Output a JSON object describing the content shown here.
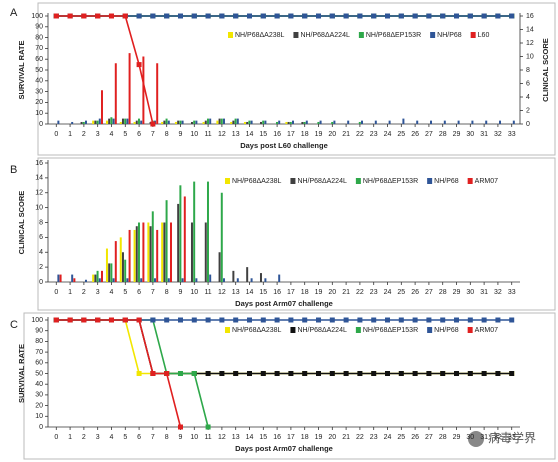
{
  "chart_data": [
    {
      "type": "line",
      "panel_label": "A",
      "y_label": "SURVIVAL RATE",
      "y2_label": "CLINICAL SCORE",
      "x_label": "Days post L60 challenge",
      "x": [
        0,
        1,
        2,
        3,
        4,
        5,
        6,
        7,
        8,
        9,
        10,
        11,
        12,
        13,
        14,
        15,
        16,
        17,
        18,
        19,
        20,
        21,
        22,
        23,
        24,
        25,
        26,
        27,
        28,
        29,
        30,
        31,
        32,
        33
      ],
      "xlim": [
        -0.6,
        33.6
      ],
      "ylim": [
        0,
        100
      ],
      "yticks": [
        0,
        10,
        20,
        30,
        40,
        50,
        60,
        70,
        80,
        90,
        100
      ],
      "y2lim": [
        0,
        16
      ],
      "y2ticks": [
        0,
        2,
        4,
        6,
        8,
        10,
        12,
        14,
        16
      ],
      "series": [
        {
          "name": "NH/P68ΔA238L",
          "color": "#f2e600",
          "values": [
            100,
            100,
            100,
            100,
            100,
            100,
            100,
            100,
            100,
            100,
            100,
            100,
            100,
            100,
            100,
            100,
            100,
            100,
            100,
            100,
            100,
            100,
            100,
            100,
            100,
            100,
            100,
            100,
            100,
            100,
            100,
            100,
            100,
            100
          ],
          "scores": [
            0,
            0,
            0,
            0.5,
            0.5,
            0.3,
            0.3,
            0,
            0.3,
            0.3,
            0,
            0.3,
            0.5,
            0.3,
            0.3,
            0,
            0,
            0.3,
            0,
            0,
            0,
            0,
            0,
            0,
            0,
            0,
            0,
            0,
            0,
            0,
            0,
            0,
            0,
            0
          ]
        },
        {
          "name": "NH/P68ΔA224L",
          "color": "#404040",
          "values": [
            100,
            100,
            100,
            100,
            100,
            100,
            100,
            100,
            100,
            100,
            100,
            100,
            100,
            100,
            100,
            100,
            100,
            100,
            100,
            100,
            100,
            100,
            100,
            100,
            100,
            100,
            100,
            100,
            100,
            100,
            100,
            100,
            100,
            100
          ],
          "scores": [
            0,
            0,
            0.3,
            0.5,
            0.8,
            0.8,
            0.5,
            0.3,
            0.5,
            0.5,
            0.3,
            0.5,
            0.8,
            0.5,
            0.3,
            0.3,
            0,
            0.3,
            0.3,
            0,
            0,
            0,
            0,
            0,
            0,
            0,
            0,
            0,
            0,
            0,
            0,
            0,
            0,
            0
          ]
        },
        {
          "name": "NH/P68ΔEP153R",
          "color": "#2ea84a",
          "values": [
            100,
            100,
            100,
            100,
            100,
            100,
            100,
            100,
            100,
            100,
            100,
            100,
            100,
            100,
            100,
            100,
            100,
            100,
            100,
            100,
            100,
            100,
            100,
            100,
            100,
            100,
            100,
            100,
            100,
            100,
            100,
            100,
            100,
            100
          ],
          "scores": [
            0,
            0,
            0.3,
            0.5,
            1,
            0.8,
            0.8,
            0.5,
            0.8,
            0.5,
            0.5,
            0.8,
            0.8,
            0.8,
            0.5,
            0.5,
            0.3,
            0.3,
            0.3,
            0.3,
            0.3,
            0,
            0.3,
            0,
            0,
            0,
            0,
            0,
            0,
            0,
            0,
            0,
            0,
            0
          ]
        },
        {
          "name": "NH/P68",
          "color": "#2f5597",
          "values": [
            100,
            100,
            100,
            100,
            100,
            100,
            100,
            100,
            100,
            100,
            100,
            100,
            100,
            100,
            100,
            100,
            100,
            100,
            100,
            100,
            100,
            100,
            100,
            100,
            100,
            100,
            100,
            100,
            100,
            100,
            100,
            100,
            100,
            100
          ],
          "scores": [
            0.5,
            0.3,
            0.5,
            0.8,
            0.8,
            0.8,
            0.5,
            0.5,
            0.5,
            0.5,
            0.5,
            0.8,
            0.8,
            0.8,
            0.5,
            0.5,
            0.5,
            0.5,
            0.5,
            0.5,
            0.5,
            0.5,
            0.5,
            0.5,
            0.5,
            0.8,
            0.5,
            0.5,
            0.5,
            0.5,
            0.5,
            0.5,
            0.5,
            0.5
          ]
        },
        {
          "name": "L60",
          "color": "#e02020",
          "values": [
            100,
            100,
            100,
            100,
            100,
            100,
            55,
            0,
            null,
            null,
            null,
            null,
            null,
            null,
            null,
            null,
            null,
            null,
            null,
            null,
            null,
            null,
            null,
            null,
            null,
            null,
            null,
            null,
            null,
            null,
            null,
            null,
            null,
            null
          ],
          "scores": [
            0,
            0,
            0,
            5,
            9,
            10.5,
            10,
            9,
            null,
            null,
            null,
            null,
            null,
            null,
            null,
            null,
            null,
            null,
            null,
            null,
            null,
            null,
            null,
            null,
            null,
            null,
            null,
            null,
            null,
            null,
            null,
            null,
            null,
            null
          ]
        }
      ]
    },
    {
      "type": "bar",
      "panel_label": "B",
      "y_label": "CLINICAL SCORE",
      "x_label": "Days post Arm07 challenge",
      "x": [
        0,
        1,
        2,
        3,
        4,
        5,
        6,
        7,
        8,
        9,
        10,
        11,
        12,
        13,
        14,
        15,
        16,
        17,
        18,
        19,
        20,
        21,
        22,
        23,
        24,
        25,
        26,
        27,
        28,
        29,
        30,
        31,
        32,
        33
      ],
      "xlim": [
        -0.6,
        33.6
      ],
      "ylim": [
        0,
        16
      ],
      "yticks": [
        0,
        2,
        4,
        6,
        8,
        10,
        12,
        14,
        16
      ],
      "series": [
        {
          "name": "NH/P68ΔA238L",
          "color": "#f2e600",
          "values": [
            0,
            0,
            0,
            1,
            4.5,
            6,
            7,
            8,
            8,
            0,
            0,
            0,
            0,
            0,
            0,
            0,
            0,
            0,
            0,
            0,
            0,
            0,
            0,
            0,
            0,
            0,
            0,
            0,
            0,
            0,
            0,
            0,
            0,
            0
          ]
        },
        {
          "name": "NH/P68ΔA224L",
          "color": "#404040",
          "values": [
            0,
            0,
            0,
            1,
            2.5,
            4,
            7.5,
            7.5,
            8,
            10.5,
            8,
            8,
            4,
            1.5,
            2,
            1.2,
            0,
            0,
            0,
            0,
            0,
            0,
            0,
            0,
            0,
            0,
            0,
            0,
            0,
            0,
            0,
            0,
            0,
            0
          ]
        },
        {
          "name": "NH/P68ΔEP153R",
          "color": "#2ea84a",
          "values": [
            0,
            0,
            0,
            1.5,
            2.5,
            3,
            8,
            9.5,
            11,
            13,
            13.5,
            13.5,
            12,
            0,
            0,
            0,
            0,
            0,
            0,
            0,
            0,
            0,
            0,
            0,
            0,
            0,
            0,
            0,
            0,
            0,
            0,
            0,
            0,
            0
          ]
        },
        {
          "name": "NH/P68",
          "color": "#2f5597",
          "values": [
            1,
            1,
            0.3,
            0.5,
            0.5,
            0.5,
            0.5,
            0.5,
            0.5,
            0.5,
            0.5,
            1,
            0.5,
            0.5,
            0.5,
            0.5,
            1,
            0,
            0,
            0,
            0,
            0,
            0,
            0,
            0,
            0,
            0,
            0,
            0,
            0,
            0,
            0,
            0,
            0
          ]
        },
        {
          "name": "ARM07",
          "color": "#e02020",
          "values": [
            1,
            0.5,
            0,
            1.5,
            5.5,
            7,
            8,
            7,
            8,
            11.5,
            null,
            null,
            null,
            null,
            null,
            null,
            null,
            null,
            null,
            null,
            null,
            null,
            null,
            null,
            null,
            null,
            null,
            null,
            null,
            null,
            null,
            null,
            null,
            null
          ]
        }
      ]
    },
    {
      "type": "line",
      "panel_label": "C",
      "y_label": "SURVIVAL RATE",
      "x_label": "Days post Arm07 challenge",
      "x": [
        0,
        1,
        2,
        3,
        4,
        5,
        6,
        7,
        8,
        9,
        10,
        11,
        12,
        13,
        14,
        15,
        16,
        17,
        18,
        19,
        20,
        21,
        22,
        23,
        24,
        25,
        26,
        27,
        28,
        29,
        30,
        31,
        32,
        33
      ],
      "xlim": [
        -0.6,
        33.6
      ],
      "ylim": [
        0,
        100
      ],
      "yticks": [
        0,
        10,
        20,
        30,
        40,
        50,
        60,
        70,
        80,
        90,
        100
      ],
      "series": [
        {
          "name": "NH/P68ΔA238L",
          "color": "#f2e600",
          "values": [
            100,
            100,
            100,
            100,
            100,
            100,
            50,
            50,
            50,
            50,
            50,
            50,
            50,
            50,
            50,
            50,
            50,
            50,
            50,
            50,
            50,
            50,
            50,
            50,
            50,
            50,
            50,
            50,
            50,
            50,
            50,
            50,
            50,
            50
          ]
        },
        {
          "name": "NH/P68ΔA224L",
          "color": "#111111",
          "values": [
            100,
            100,
            100,
            100,
            100,
            100,
            100,
            50,
            50,
            50,
            50,
            50,
            50,
            50,
            50,
            50,
            50,
            50,
            50,
            50,
            50,
            50,
            50,
            50,
            50,
            50,
            50,
            50,
            50,
            50,
            50,
            50,
            50,
            50
          ]
        },
        {
          "name": "NH/P68ΔEP153R",
          "color": "#2ea84a",
          "values": [
            100,
            100,
            100,
            100,
            100,
            100,
            100,
            100,
            50,
            50,
            50,
            0,
            null,
            null,
            null,
            null,
            null,
            null,
            null,
            null,
            null,
            null,
            null,
            null,
            null,
            null,
            null,
            null,
            null,
            null,
            null,
            null,
            null,
            null
          ]
        },
        {
          "name": "NH/P68",
          "color": "#2f5597",
          "values": [
            100,
            100,
            100,
            100,
            100,
            100,
            100,
            100,
            100,
            100,
            100,
            100,
            100,
            100,
            100,
            100,
            100,
            100,
            100,
            100,
            100,
            100,
            100,
            100,
            100,
            100,
            100,
            100,
            100,
            100,
            100,
            100,
            100,
            100
          ]
        },
        {
          "name": "ARM07",
          "color": "#e02020",
          "values": [
            100,
            100,
            100,
            100,
            100,
            100,
            100,
            50,
            50,
            0,
            null,
            null,
            null,
            null,
            null,
            null,
            null,
            null,
            null,
            null,
            null,
            null,
            null,
            null,
            null,
            null,
            null,
            null,
            null,
            null,
            null,
            null,
            null,
            null
          ]
        }
      ]
    }
  ],
  "watermark": "病毒学界"
}
